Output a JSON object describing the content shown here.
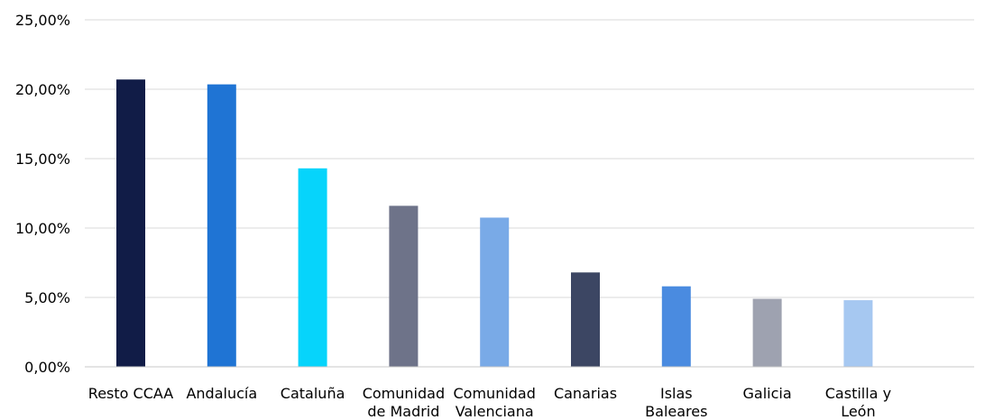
{
  "chart_data": {
    "type": "bar",
    "title": "",
    "xlabel": "",
    "ylabel": "",
    "ylim": [
      0,
      25
    ],
    "y_ticks": [
      "0,00%",
      "5,00%",
      "10,00%",
      "15,00%",
      "20,00%",
      "25,00%"
    ],
    "grid": true,
    "legend": "none",
    "categories": [
      [
        "Resto CCAA"
      ],
      [
        "Andalucía"
      ],
      [
        "Cataluña"
      ],
      [
        "Comunidad",
        "de Madrid"
      ],
      [
        "Comunidad",
        "Valenciana"
      ],
      [
        "Canarias"
      ],
      [
        "Islas",
        "Baleares"
      ],
      [
        "Galicia"
      ],
      [
        "Castilla y",
        "León"
      ]
    ],
    "values": [
      20.7,
      20.35,
      14.3,
      11.6,
      10.75,
      6.8,
      5.8,
      4.9,
      4.8
    ],
    "colors": [
      "#111c47",
      "#1f74d4",
      "#06d4fb",
      "#6e7389",
      "#79aae7",
      "#3c4663",
      "#4a8be0",
      "#9ea2b0",
      "#a6c8f1"
    ]
  }
}
